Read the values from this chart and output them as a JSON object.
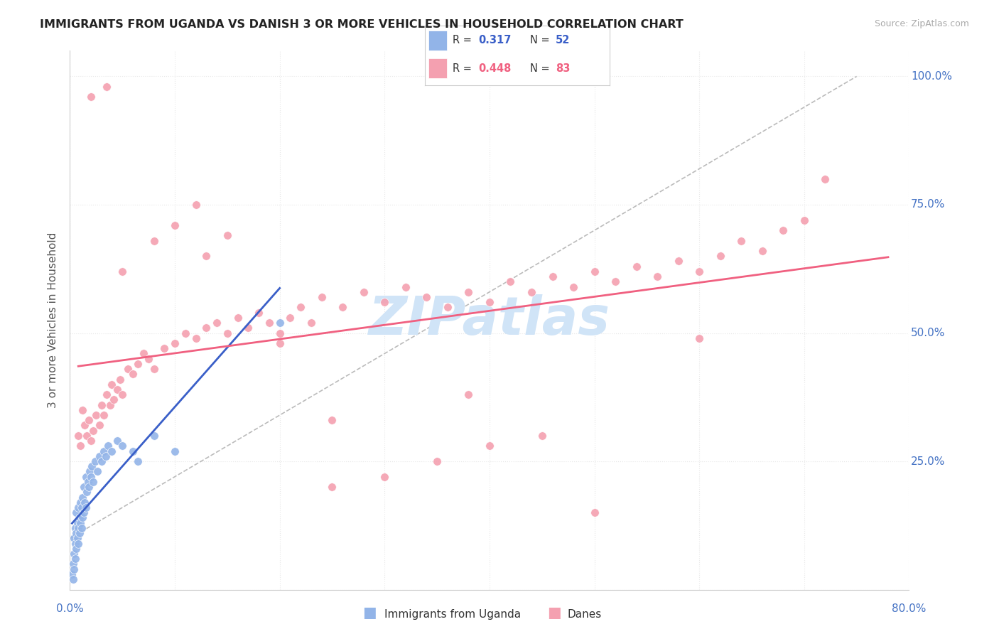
{
  "title": "IMMIGRANTS FROM UGANDA VS DANISH 3 OR MORE VEHICLES IN HOUSEHOLD CORRELATION CHART",
  "source": "Source: ZipAtlas.com",
  "ylabel": "3 or more Vehicles in Household",
  "xlim": [
    0.0,
    0.8
  ],
  "ylim": [
    0.0,
    1.05
  ],
  "r_uganda": 0.317,
  "n_uganda": 52,
  "r_danes": 0.448,
  "n_danes": 83,
  "uganda_color": "#92b4e8",
  "danes_color": "#f4a0b0",
  "uganda_line_color": "#3a5fc8",
  "danes_line_color": "#f06080",
  "ref_line_color": "#bbbbbb",
  "watermark_color": "#d0e4f7",
  "background_color": "#ffffff",
  "grid_color": "#e8e8e8",
  "title_color": "#222222",
  "source_color": "#aaaaaa",
  "axis_label_color": "#4472c4",
  "ylabel_color": "#555555"
}
